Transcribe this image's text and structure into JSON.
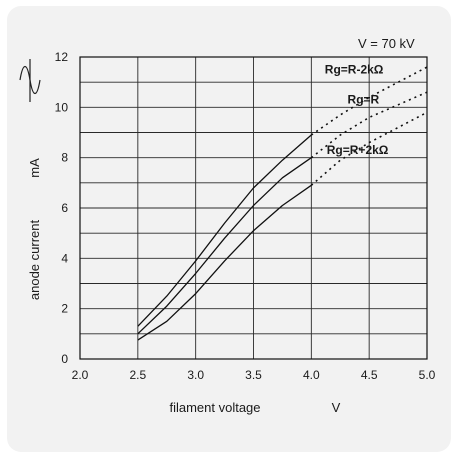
{
  "chart_data": {
    "type": "line",
    "title": "V = 70 kV",
    "xlabel": "filament voltage",
    "xunit": "V",
    "ylabel": "anode current",
    "yunit": "mA",
    "xlim": [
      2.0,
      5.0
    ],
    "ylim": [
      0,
      12
    ],
    "xticks": [
      "2.0",
      "2.5",
      "3.0",
      "3.5",
      "4.0",
      "4.5",
      "5.0"
    ],
    "yticks": [
      "0",
      "2",
      "4",
      "6",
      "8",
      "10",
      "12"
    ],
    "grid": true,
    "extrapolated_from_x": 4.0,
    "series": [
      {
        "name": "Rg=R-2kΩ",
        "x": [
          2.5,
          2.75,
          3.0,
          3.25,
          3.5,
          3.75,
          4.0,
          4.25,
          4.5,
          4.75,
          5.0
        ],
        "y": [
          1.3,
          2.5,
          3.9,
          5.4,
          6.8,
          7.9,
          8.9,
          9.7,
          10.4,
          11.0,
          11.6
        ]
      },
      {
        "name": "Rg=R",
        "x": [
          2.5,
          2.75,
          3.0,
          3.25,
          3.5,
          3.75,
          4.0,
          4.25,
          4.5,
          4.75,
          5.0
        ],
        "y": [
          1.0,
          2.1,
          3.4,
          4.8,
          6.1,
          7.2,
          8.0,
          8.9,
          9.6,
          10.1,
          10.6
        ]
      },
      {
        "name": "Rg=R+2kΩ",
        "x": [
          2.5,
          2.75,
          3.0,
          3.25,
          3.5,
          3.75,
          4.0,
          4.25,
          4.5,
          4.75,
          5.0
        ],
        "y": [
          0.75,
          1.5,
          2.6,
          3.9,
          5.1,
          6.1,
          6.9,
          7.9,
          8.6,
          9.2,
          9.8
        ]
      }
    ]
  }
}
